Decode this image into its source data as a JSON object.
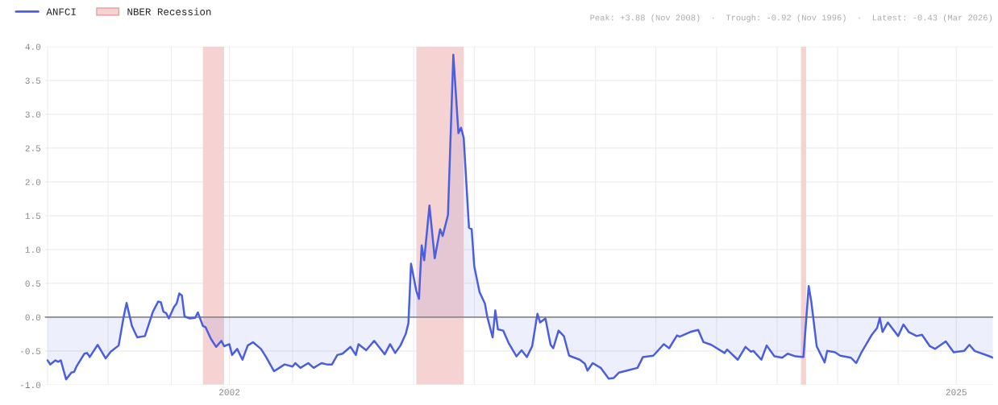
{
  "chart_data": {
    "type": "area",
    "annotations": [
      "Peak: +3.88 (Nov 2008)  ·  Trough: -0.92 (Nov 1996)  ·  Latest: -0.43 (Mar 2026)"
    ],
    "x": [
      "1996-04",
      "1996-05",
      "1996-07",
      "1996-08",
      "1996-09",
      "1996-11",
      "1997-01",
      "1997-02",
      "1997-03",
      "1997-06",
      "1997-07",
      "1997-08",
      "1997-11",
      "1998-02",
      "1998-04",
      "1998-07",
      "1998-09",
      "1998-10",
      "1998-12",
      "1999-02",
      "1999-05",
      "1999-08",
      "1999-10",
      "1999-11",
      "1999-12",
      "2000-01",
      "2000-02",
      "2000-04",
      "2000-05",
      "2000-06",
      "2000-07",
      "2000-08",
      "2000-10",
      "2000-12",
      "2001-01",
      "2001-03",
      "2001-04",
      "2001-06",
      "2001-08",
      "2001-10",
      "2001-11",
      "2002-01",
      "2002-02",
      "2002-04",
      "2002-06",
      "2002-08",
      "2002-10",
      "2003-01",
      "2003-03",
      "2003-06",
      "2003-08",
      "2003-10",
      "2004-01",
      "2004-02",
      "2004-04",
      "2004-07",
      "2004-09",
      "2004-12",
      "2005-02",
      "2005-04",
      "2005-06",
      "2005-08",
      "2005-11",
      "2006-01",
      "2006-02",
      "2006-05",
      "2006-08",
      "2006-12",
      "2007-02",
      "2007-04",
      "2007-06",
      "2007-08",
      "2007-09",
      "2007-10",
      "2007-12",
      "2008-01",
      "2008-02",
      "2008-03",
      "2008-05",
      "2008-07",
      "2008-09",
      "2008-10",
      "2008-12",
      "2009-02",
      "2009-04",
      "2009-05",
      "2009-06",
      "2009-08",
      "2009-09",
      "2009-10",
      "2009-12",
      "2010-02",
      "2010-03",
      "2010-05",
      "2010-06",
      "2010-07",
      "2010-09",
      "2010-11",
      "2011-02",
      "2011-04",
      "2011-06",
      "2011-08",
      "2011-10",
      "2011-11",
      "2012-01",
      "2012-03",
      "2012-04",
      "2012-06",
      "2012-08",
      "2012-10",
      "2013-02",
      "2013-04",
      "2013-05",
      "2013-07",
      "2013-10",
      "2014-01",
      "2014-03",
      "2014-05",
      "2014-08",
      "2014-12",
      "2015-02",
      "2015-06",
      "2015-10",
      "2015-12",
      "2016-03",
      "2016-04",
      "2016-08",
      "2016-11",
      "2017-01",
      "2017-04",
      "2017-09",
      "2017-10",
      "2018-02",
      "2018-05",
      "2018-07",
      "2018-08",
      "2018-11",
      "2019-01",
      "2019-04",
      "2019-07",
      "2019-09",
      "2019-12",
      "2020-03",
      "2020-05",
      "2020-06",
      "2020-08",
      "2020-11",
      "2020-12",
      "2021-03",
      "2021-05",
      "2021-09",
      "2021-11",
      "2022-01",
      "2022-05",
      "2022-07",
      "2022-08",
      "2022-09",
      "2022-11",
      "2023-03",
      "2023-05",
      "2023-07",
      "2023-10",
      "2023-12",
      "2024-03",
      "2024-05",
      "2024-09",
      "2024-12",
      "2025-04",
      "2025-06",
      "2025-08",
      "2026-01",
      "2026-03"
    ],
    "series": [
      {
        "name": "ANFCI",
        "color": "#4a5ee0",
        "values": [
          -0.64,
          -0.7,
          -0.64,
          -0.66,
          -0.64,
          -0.92,
          -0.82,
          -0.81,
          -0.73,
          -0.54,
          -0.53,
          -0.59,
          -0.41,
          -0.61,
          -0.51,
          -0.42,
          0.03,
          0.21,
          -0.13,
          -0.3,
          -0.28,
          0.08,
          0.23,
          0.22,
          0.08,
          0.06,
          -0.02,
          0.15,
          0.2,
          0.35,
          0.32,
          0.01,
          -0.02,
          -0.01,
          0.07,
          -0.13,
          -0.15,
          -0.32,
          -0.44,
          -0.35,
          -0.43,
          -0.4,
          -0.56,
          -0.47,
          -0.63,
          -0.42,
          -0.37,
          -0.47,
          -0.59,
          -0.8,
          -0.75,
          -0.7,
          -0.73,
          -0.68,
          -0.75,
          -0.68,
          -0.75,
          -0.68,
          -0.7,
          -0.7,
          -0.56,
          -0.54,
          -0.44,
          -0.56,
          -0.4,
          -0.49,
          -0.35,
          -0.55,
          -0.4,
          -0.53,
          -0.42,
          -0.25,
          -0.09,
          0.79,
          0.39,
          0.27,
          1.06,
          0.84,
          1.65,
          0.87,
          1.3,
          1.2,
          1.51,
          3.88,
          2.72,
          2.8,
          2.65,
          1.32,
          1.3,
          0.75,
          0.37,
          0.2,
          0.0,
          -0.3,
          0.1,
          -0.18,
          -0.2,
          -0.38,
          -0.58,
          -0.49,
          -0.59,
          -0.43,
          0.05,
          -0.08,
          -0.02,
          -0.41,
          -0.46,
          -0.2,
          -0.28,
          -0.57,
          -0.63,
          -0.69,
          -0.79,
          -0.68,
          -0.75,
          -0.91,
          -0.9,
          -0.82,
          -0.79,
          -0.75,
          -0.59,
          -0.57,
          -0.4,
          -0.46,
          -0.27,
          -0.29,
          -0.22,
          -0.19,
          -0.37,
          -0.41,
          -0.53,
          -0.48,
          -0.63,
          -0.44,
          -0.51,
          -0.5,
          -0.63,
          -0.42,
          -0.58,
          -0.6,
          -0.54,
          -0.58,
          -0.59,
          0.46,
          0.22,
          -0.43,
          -0.67,
          -0.5,
          -0.52,
          -0.57,
          -0.6,
          -0.68,
          -0.52,
          -0.26,
          -0.16,
          -0.01,
          -0.22,
          -0.08,
          -0.28,
          -0.11,
          -0.22,
          -0.28,
          -0.26,
          -0.43,
          -0.47,
          -0.36,
          -0.52,
          -0.5,
          -0.41,
          -0.5,
          -0.57,
          -0.6
        ]
      }
    ],
    "xlim": [
      "1996-03",
      "2026-03"
    ],
    "xticks": [
      {
        "value": "1996-04",
        "label": null
      },
      {
        "value": "1998-03",
        "label": null
      },
      {
        "value": "2000-03",
        "label": null
      },
      {
        "value": "2002-01",
        "label": "2002"
      },
      {
        "value": "2004-01",
        "label": null
      },
      {
        "value": "2005-12",
        "label": null
      },
      {
        "value": "2007-11",
        "label": null
      },
      {
        "value": "2009-10",
        "label": null
      },
      {
        "value": "2011-09",
        "label": null
      },
      {
        "value": "2013-08",
        "label": null
      },
      {
        "value": "2015-07",
        "label": null
      },
      {
        "value": "2017-06",
        "label": null
      },
      {
        "value": "2019-05",
        "label": null
      },
      {
        "value": "2021-04",
        "label": null
      },
      {
        "value": "2023-03",
        "label": null
      },
      {
        "value": "2025-01",
        "label": "2025"
      }
    ],
    "ylim": [
      -1.0,
      4.0
    ],
    "yticks": [
      {
        "value": -1,
        "label": "-1.0"
      },
      {
        "value": -0.5,
        "label": "-0.5"
      },
      {
        "value": 0,
        "label": "0.0"
      },
      {
        "value": 0.5,
        "label": "0.5"
      },
      {
        "value": 1,
        "label": "1.0"
      },
      {
        "value": 1.5,
        "label": "1.5"
      },
      {
        "value": 2,
        "label": "2.0"
      },
      {
        "value": 2.5,
        "label": "2.5"
      },
      {
        "value": 3,
        "label": "3.0"
      },
      {
        "value": 3.5,
        "label": "3.5"
      },
      {
        "value": 4,
        "label": "4.0"
      }
    ],
    "ref_lines": [
      {
        "axis": "y",
        "value": 0,
        "color": "#8a8a8a"
      }
    ],
    "bands": [
      {
        "axis": "x",
        "from": "2001-03",
        "to": "2001-11",
        "label": "NBER Recession",
        "color": "#f6d3d3"
      },
      {
        "axis": "x",
        "from": "2007-12",
        "to": "2009-06",
        "color": "#f6d3d3"
      },
      {
        "axis": "x",
        "from": "2020-02",
        "to": "2020-04",
        "color": "#f6d3d3"
      }
    ],
    "grid": true,
    "legend": "top left"
  }
}
